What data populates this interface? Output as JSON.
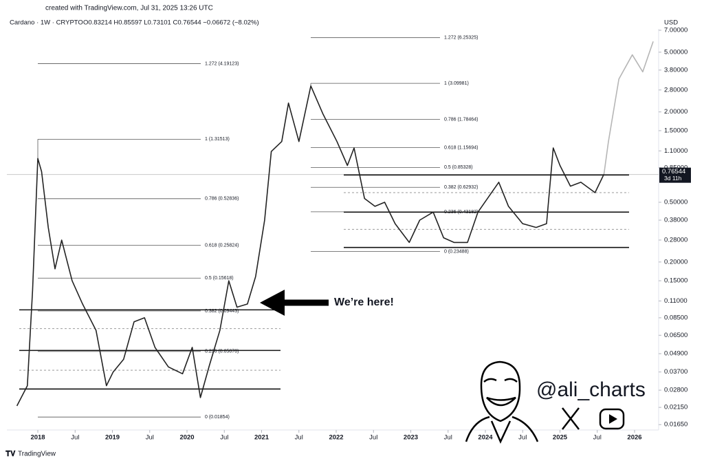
{
  "chart_data": {
    "type": "line",
    "watermark": "created with TradingView.com, Jul 31, 2025 13:26 UTC",
    "symbol": "Cardano · 1W · CRYPTO",
    "ohlc": "O0.83214 H0.85597 L0.73101 C0.76544 −0.06672 (−8.02%)",
    "currency": "USD",
    "annotation": "We’re here!",
    "handle": "@ali_charts",
    "brand": "TradingView",
    "log_scale": true,
    "x": [
      2017.72,
      2017.86,
      2017.93,
      2018.0,
      2018.05,
      2018.14,
      2018.23,
      2018.32,
      2018.46,
      2018.6,
      2018.78,
      2018.92,
      2019.01,
      2019.15,
      2019.29,
      2019.43,
      2019.57,
      2019.75,
      2019.94,
      2020.07,
      2020.18,
      2020.3,
      2020.44,
      2020.56,
      2020.67,
      2020.81,
      2020.92,
      2021.04,
      2021.13,
      2021.27,
      2021.36,
      2021.5,
      2021.66,
      2021.82,
      2022.01,
      2022.15,
      2022.24,
      2022.38,
      2022.52,
      2022.65,
      2022.79,
      2022.98,
      2023.12,
      2023.3,
      2023.44,
      2023.58,
      2023.76,
      2023.9,
      2024.04,
      2024.18,
      2024.31,
      2024.5,
      2024.68,
      2024.82,
      2024.91,
      2025.0,
      2025.14,
      2025.28,
      2025.47,
      2025.59,
      2025.65,
      2025.79,
      2025.97,
      2026.11,
      2026.25
    ],
    "series": [
      {
        "color": "#222222",
        "values": [
          0.022,
          0.03,
          0.13,
          0.98,
          0.8,
          0.34,
          0.18,
          0.28,
          0.15,
          0.105,
          0.07,
          0.03,
          0.037,
          0.045,
          0.08,
          0.085,
          0.054,
          0.04,
          0.036,
          0.054,
          0.025,
          0.041,
          0.07,
          0.15,
          0.1,
          0.105,
          0.16,
          0.38,
          1.09,
          1.27,
          2.29,
          1.27,
          2.98,
          1.95,
          1.27,
          0.88,
          1.15,
          0.53,
          0.47,
          0.5,
          0.36,
          0.27,
          0.38,
          0.43,
          0.29,
          0.27,
          0.27,
          0.43,
          0.54,
          0.68,
          0.47,
          0.36,
          0.34,
          0.36,
          1.15,
          0.88,
          0.64,
          0.68,
          0.58,
          0.77,
          null,
          null,
          null,
          null,
          null
        ]
      },
      {
        "color": "#b5b5b5",
        "values": [
          null,
          null,
          null,
          null,
          null,
          null,
          null,
          null,
          null,
          null,
          null,
          null,
          null,
          null,
          null,
          null,
          null,
          null,
          null,
          null,
          null,
          null,
          null,
          null,
          null,
          null,
          null,
          null,
          null,
          null,
          null,
          null,
          null,
          null,
          null,
          null,
          null,
          null,
          null,
          null,
          null,
          null,
          null,
          null,
          null,
          null,
          null,
          null,
          null,
          null,
          null,
          null,
          null,
          null,
          null,
          null,
          null,
          null,
          null,
          0.77,
          1.27,
          3.31,
          4.8,
          3.7,
          5.9
        ]
      }
    ],
    "xlim": [
      2017.585,
      2026.295
    ],
    "xticks": [
      {
        "value": 2018,
        "label": "2018"
      },
      {
        "value": 2018.5,
        "label": "Jul"
      },
      {
        "value": 2019,
        "label": "2019"
      },
      {
        "value": 2019.5,
        "label": "Jul"
      },
      {
        "value": 2020,
        "label": "2020"
      },
      {
        "value": 2020.5,
        "label": "Jul"
      },
      {
        "value": 2021,
        "label": "2021"
      },
      {
        "value": 2021.5,
        "label": "Jul"
      },
      {
        "value": 2022,
        "label": "2022"
      },
      {
        "value": 2022.5,
        "label": "Jul"
      },
      {
        "value": 2023,
        "label": "2023"
      },
      {
        "value": 2023.5,
        "label": "Jul"
      },
      {
        "value": 2024,
        "label": "2024"
      },
      {
        "value": 2024.5,
        "label": "Jul"
      },
      {
        "value": 2025,
        "label": "2025"
      },
      {
        "value": 2025.5,
        "label": "Jul"
      },
      {
        "value": 2026,
        "label": "2026"
      }
    ],
    "ylim": [
      0.0152,
      7.3
    ],
    "yticks": [
      {
        "value": 7,
        "label": "7.00000"
      },
      {
        "value": 5,
        "label": "5.00000"
      },
      {
        "value": 3.8,
        "label": "3.80000"
      },
      {
        "value": 2.8,
        "label": "2.80000"
      },
      {
        "value": 2,
        "label": "2.00000"
      },
      {
        "value": 1.5,
        "label": "1.50000"
      },
      {
        "value": 1.1,
        "label": "1.10000"
      },
      {
        "value": 0.85,
        "label": "0.85000"
      },
      {
        "value": 0.5,
        "label": "0.50000"
      },
      {
        "value": 0.38,
        "label": "0.38000"
      },
      {
        "value": 0.28,
        "label": "0.28000"
      },
      {
        "value": 0.2,
        "label": "0.20000"
      },
      {
        "value": 0.15,
        "label": "0.15000"
      },
      {
        "value": 0.11,
        "label": "0.11000"
      },
      {
        "value": 0.085,
        "label": "0.08500"
      },
      {
        "value": 0.065,
        "label": "0.06500"
      },
      {
        "value": 0.049,
        "label": "0.04900"
      },
      {
        "value": 0.037,
        "label": "0.03700"
      },
      {
        "value": 0.028,
        "label": "0.02800"
      },
      {
        "value": 0.0215,
        "label": "0.02150"
      },
      {
        "value": 0.0165,
        "label": "0.01650"
      }
    ],
    "last_price": 0.76544,
    "countdown": "3d 11h",
    "fib_sets": [
      {
        "levels": [
          {
            "value": 4.19123,
            "label": "1.272 (4.19123)"
          },
          {
            "value": 1.31513,
            "label": "1 (1.31513)"
          },
          {
            "value": 0.52836,
            "label": "0.786 (0.52836)"
          },
          {
            "value": 0.25824,
            "label": "0.618 (0.25824)"
          },
          {
            "value": 0.15618,
            "label": "0.5 (0.15618)"
          },
          {
            "value": 0.09443,
            "label": "0.382 (0.09443)"
          },
          {
            "value": 0.0507,
            "label": "0.236 (0.05070)"
          },
          {
            "value": 0.01854,
            "label": "0 (0.01854)"
          }
        ]
      },
      {
        "levels": [
          {
            "value": 6.25325,
            "label": "1.272 (6.25325)"
          },
          {
            "value": 3.09981,
            "label": "1 (3.09981)"
          },
          {
            "value": 1.78464,
            "label": "0.786 (1.78464)"
          },
          {
            "value": 1.15694,
            "label": "0.618 (1.15694)"
          },
          {
            "value": 0.85328,
            "label": "0.5 (0.85328)"
          },
          {
            "value": 0.62932,
            "label": "0.382 (0.62932)"
          },
          {
            "value": 0.43182,
            "label": "0.236 (0.43182)"
          },
          {
            "value": 0.23488,
            "label": "0 (0.23488)"
          }
        ]
      }
    ],
    "level_sets": [
      {
        "levels": [
          {
            "value": 0.096,
            "style": "solid"
          },
          {
            "value": 0.072,
            "style": "dashed"
          },
          {
            "value": 0.0515,
            "style": "solid"
          },
          {
            "value": 0.038,
            "style": "dashed"
          },
          {
            "value": 0.0285,
            "style": "solid"
          }
        ]
      },
      {
        "levels": [
          {
            "value": 0.76,
            "style": "solid"
          },
          {
            "value": 0.58,
            "style": "dashed"
          },
          {
            "value": 0.43,
            "style": "solid"
          },
          {
            "value": 0.33,
            "style": "dashed"
          },
          {
            "value": 0.25,
            "style": "solid"
          }
        ]
      }
    ]
  }
}
